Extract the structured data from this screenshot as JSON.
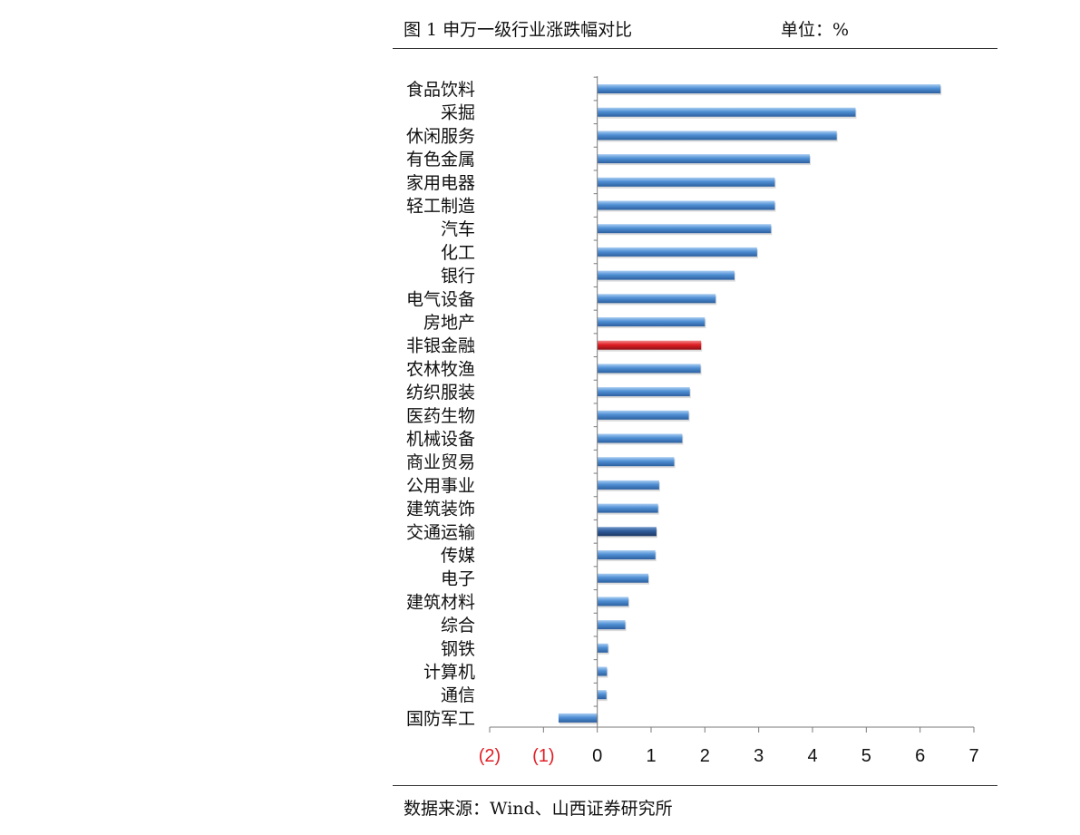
{
  "header": {
    "title": "图 1  申万一级行业涨跌幅对比",
    "unit": "单位：%"
  },
  "footer": {
    "source": "数据来源：Wind、山西证券研究所"
  },
  "colors": {
    "bar_default": "#4f8fd4",
    "bar_highlight": "#e01f26",
    "bar_dark": "#2e5b9a",
    "negative_tick": "#e01f26",
    "axis": "#7a7a7a"
  },
  "chart_data": {
    "type": "bar",
    "orientation": "horizontal",
    "categories": [
      "食品饮料",
      "采掘",
      "休闲服务",
      "有色金属",
      "家用电器",
      "轻工制造",
      "汽车",
      "化工",
      "银行",
      "电气设备",
      "房地产",
      "非银金融",
      "农林牧渔",
      "纺织服装",
      "医药生物",
      "机械设备",
      "商业贸易",
      "公用事业",
      "建筑装饰",
      "交通运输",
      "传媒",
      "电子",
      "建筑材料",
      "综合",
      "钢铁",
      "计算机",
      "通信",
      "国防军工"
    ],
    "values": [
      6.38,
      4.8,
      4.45,
      3.95,
      3.3,
      3.3,
      3.23,
      2.97,
      2.55,
      2.2,
      2.0,
      1.93,
      1.92,
      1.72,
      1.7,
      1.58,
      1.43,
      1.15,
      1.13,
      1.1,
      1.08,
      0.95,
      0.58,
      0.52,
      0.2,
      0.18,
      0.17,
      -0.72
    ],
    "highlight": {
      "非银金融": "red",
      "交通运输": "dark"
    },
    "xlim": [
      -2,
      7
    ],
    "xticks": [
      -2,
      -1,
      0,
      1,
      2,
      3,
      4,
      5,
      6,
      7
    ],
    "xtick_labels": [
      "(2)",
      "(1)",
      "0",
      "1",
      "2",
      "3",
      "4",
      "5",
      "6",
      "7"
    ],
    "grid": false,
    "legend": "none"
  }
}
